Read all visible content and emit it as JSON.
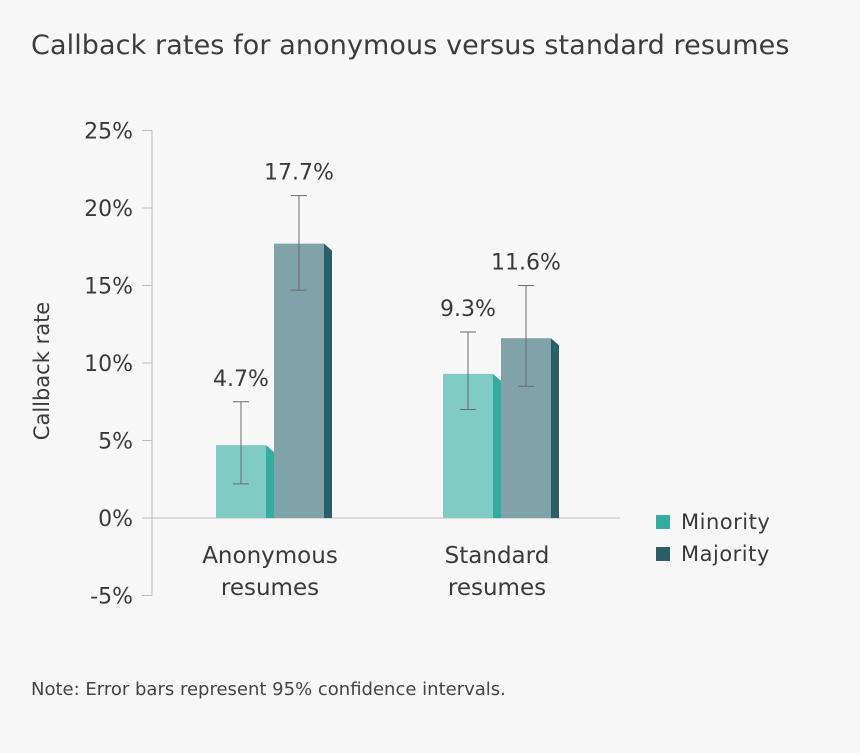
{
  "title": "Callback rates for anonymous versus standard resumes",
  "note": "Note: Error bars represent 95% confidence intervals.",
  "chart_data": {
    "type": "bar",
    "title": "Callback rates for anonymous versus standard resumes",
    "ylabel": "Callback rate",
    "xlabel": "",
    "ylim": [
      -5,
      25
    ],
    "yticks": [
      25,
      20,
      15,
      10,
      5,
      0,
      -5
    ],
    "ytick_labels": [
      "25%",
      "20%",
      "15%",
      "10%",
      "5%",
      "0%",
      "-5%"
    ],
    "categories": [
      [
        "Anonymous",
        "resumes"
      ],
      [
        "Standard",
        "resumes"
      ]
    ],
    "series": [
      {
        "name": "Minority",
        "values": [
          4.7,
          9.3
        ],
        "labels": [
          "4.7%",
          "9.3%"
        ],
        "ci_low": [
          2.2,
          7.0
        ],
        "ci_high": [
          7.5,
          12.0
        ],
        "face_color": "#80cbc4",
        "side_color": "#34ada0"
      },
      {
        "name": "Majority",
        "values": [
          17.7,
          11.6
        ],
        "labels": [
          "17.7%",
          "11.6%"
        ],
        "ci_low": [
          14.7,
          8.5
        ],
        "ci_high": [
          20.8,
          15.0
        ],
        "face_color": "#80a2a9",
        "side_color": "#2b5f68"
      }
    ],
    "legend": {
      "placement": "right",
      "entries": [
        "Minority",
        "Majority"
      ]
    },
    "grid": false,
    "error_bars": true
  }
}
